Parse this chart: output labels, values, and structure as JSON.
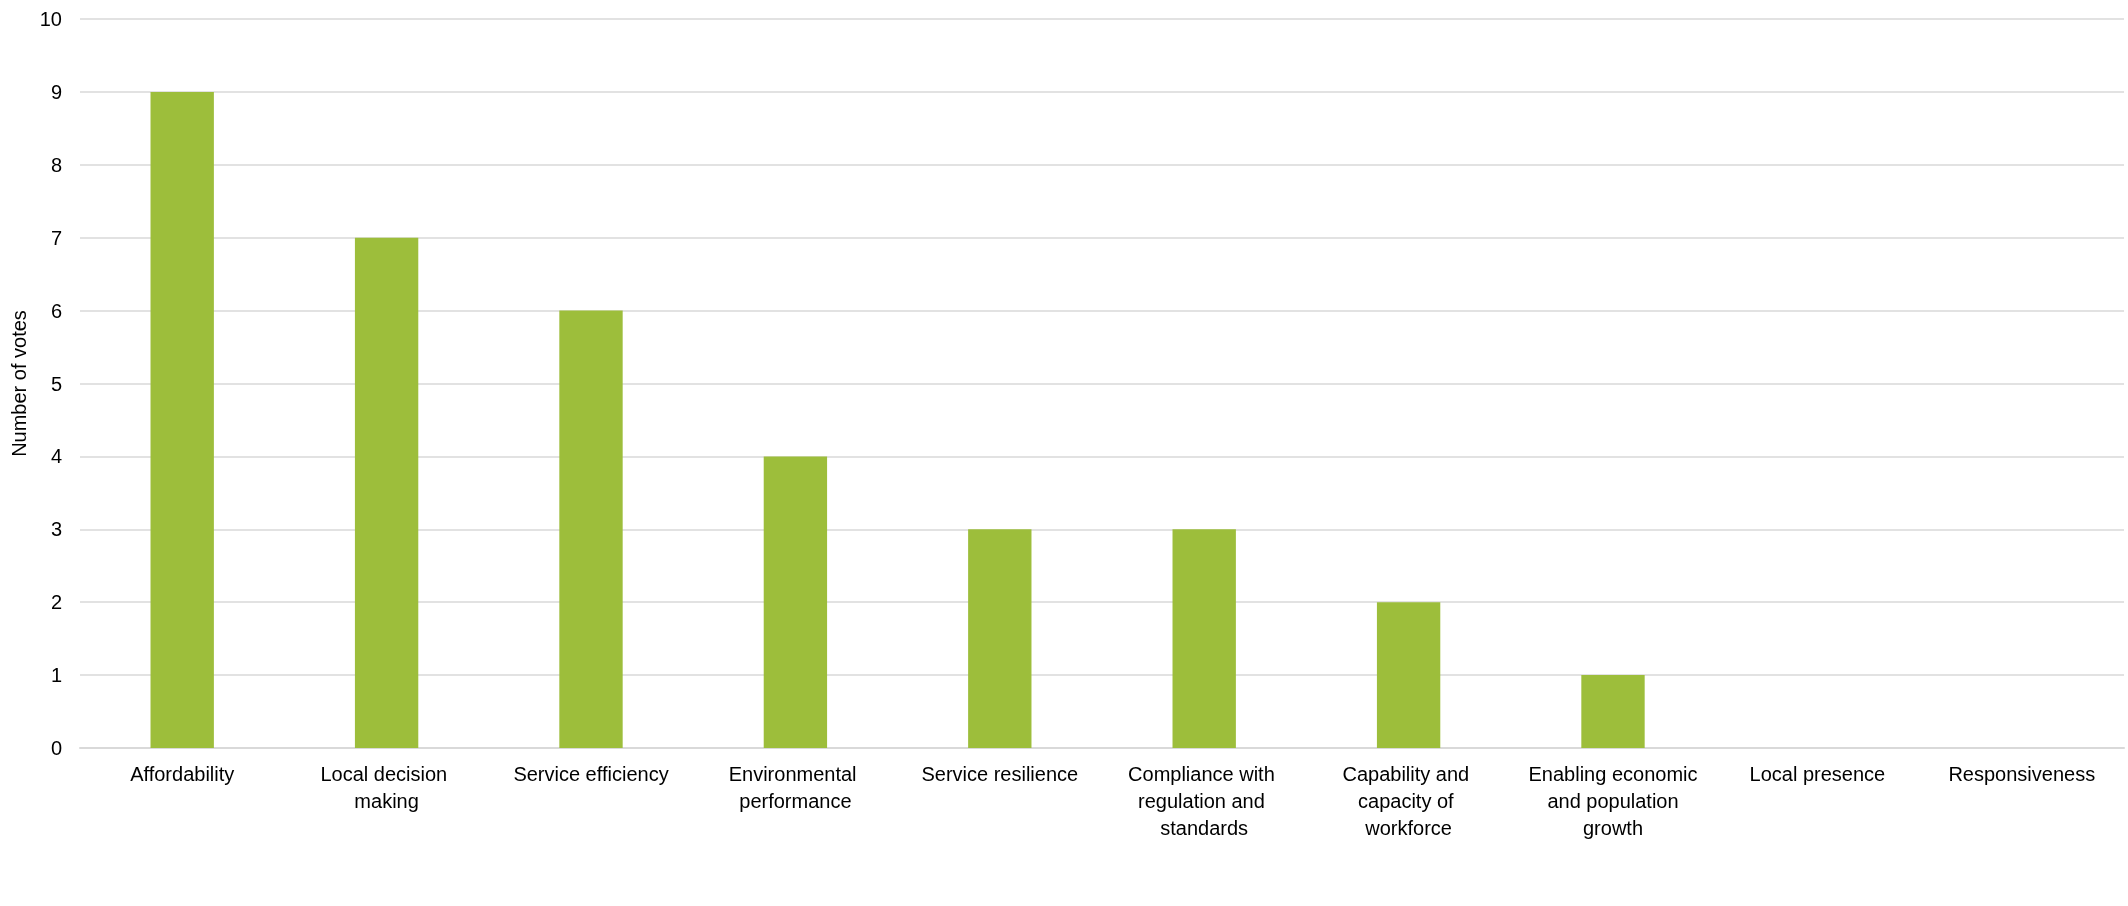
{
  "chart_data": {
    "type": "bar",
    "ylabel": "Number of votes",
    "categories": [
      "Affordability",
      "Local decision making",
      "Service efficiency",
      "Environmental performance",
      "Service resilience",
      "Compliance with regulation and standards",
      "Capability and capacity of workforce",
      "Enabling economic and population growth",
      "Local presence",
      "Responsiveness"
    ],
    "values": [
      9,
      7,
      6,
      4,
      3,
      3,
      2,
      1,
      0,
      0
    ],
    "color": "#9dbe3b",
    "ylim": [
      0,
      10
    ],
    "yticks": [
      0,
      1,
      2,
      3,
      4,
      5,
      6,
      7,
      8,
      9,
      10
    ],
    "grid": "y"
  }
}
